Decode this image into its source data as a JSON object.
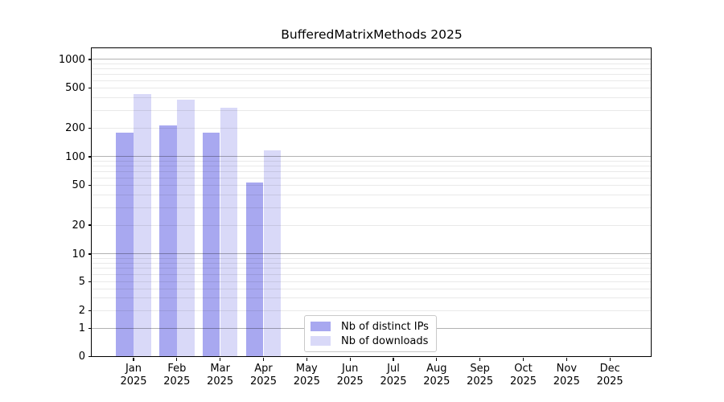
{
  "title": "BufferedMatrixMethods 2025",
  "chart_data": {
    "type": "bar",
    "title": "BufferedMatrixMethods 2025",
    "categories": [
      "Jan",
      "Feb",
      "Mar",
      "Apr",
      "May",
      "Jun",
      "Jul",
      "Aug",
      "Sep",
      "Oct",
      "Nov",
      "Dec"
    ],
    "xtick_year_line": "2025",
    "series": [
      {
        "name": "Nb of distinct IPs",
        "color": "#a8a8f0",
        "values": [
          178,
          214,
          178,
          54,
          0,
          0,
          0,
          0,
          0,
          0,
          0,
          0
        ]
      },
      {
        "name": "Nb of downloads",
        "color": "#d9d9f8",
        "values": [
          436,
          380,
          320,
          117,
          0,
          0,
          0,
          0,
          0,
          0,
          0,
          0
        ]
      }
    ],
    "xlabel": "",
    "ylabel": "",
    "yscale": "log-like",
    "yticks": [
      0,
      1,
      2,
      5,
      10,
      20,
      50,
      100,
      200,
      500,
      1000
    ],
    "ylim": [
      0,
      1300
    ],
    "grid": "on",
    "grid_over_bars": true,
    "legend_position": "lower center",
    "background": "#ffffff"
  },
  "legend": {
    "items": [
      {
        "label": "Nb of distinct IPs",
        "color": "#a8a8f0"
      },
      {
        "label": "Nb of downloads",
        "color": "#d9d9f8"
      }
    ]
  }
}
